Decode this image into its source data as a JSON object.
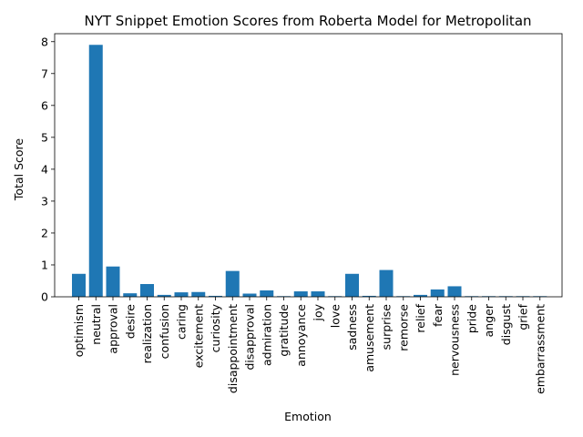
{
  "chart_data": {
    "type": "bar",
    "title": "NYT Snippet Emotion Scores from Roberta Model for Metropolitan",
    "xlabel": "Emotion",
    "ylabel": "Total Score",
    "ylim": [
      0,
      8.25
    ],
    "yticks": [
      0,
      1,
      2,
      3,
      4,
      5,
      6,
      7,
      8
    ],
    "bar_color": "#1f77b4",
    "grid": false,
    "categories": [
      "optimism",
      "neutral",
      "approval",
      "desire",
      "realization",
      "confusion",
      "caring",
      "excitement",
      "curiosity",
      "disappointment",
      "disapproval",
      "admiration",
      "gratitude",
      "annoyance",
      "joy",
      "love",
      "sadness",
      "amusement",
      "surprise",
      "remorse",
      "relief",
      "fear",
      "nervousness",
      "pride",
      "anger",
      "disgust",
      "grief",
      "embarrassment"
    ],
    "values": [
      0.72,
      7.9,
      0.95,
      0.11,
      0.4,
      0.06,
      0.14,
      0.15,
      0.03,
      0.81,
      0.1,
      0.2,
      0.02,
      0.17,
      0.17,
      0.02,
      0.72,
      0.03,
      0.84,
      0.02,
      0.06,
      0.23,
      0.33,
      0.02,
      0.02,
      0.02,
      0.02,
      0.02
    ]
  }
}
